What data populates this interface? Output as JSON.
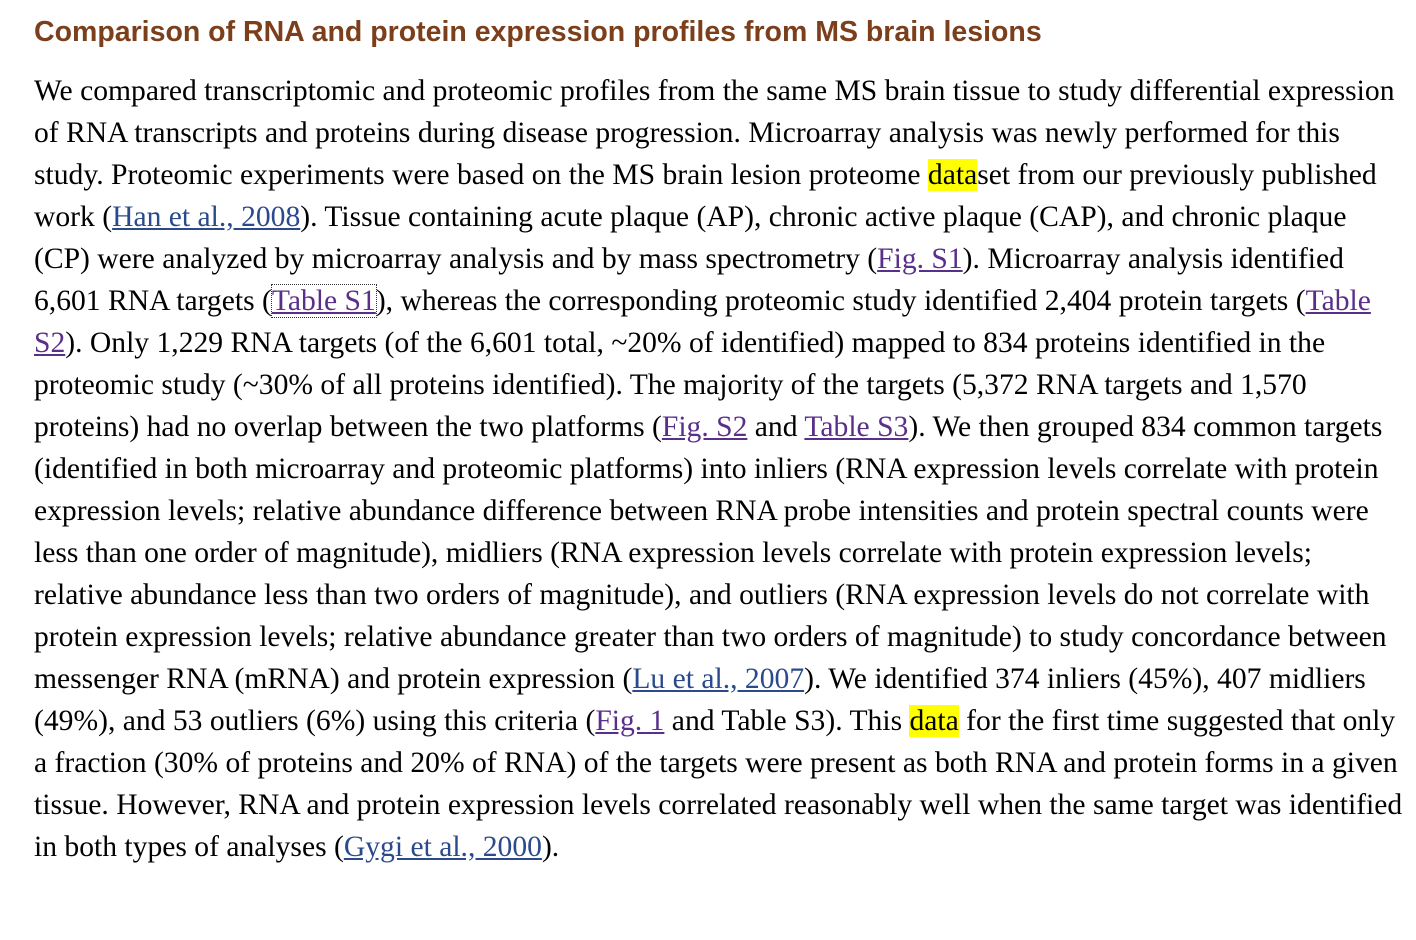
{
  "section": {
    "title": "Comparison of RNA and protein expression profiles from MS brain lesions"
  },
  "paragraph": {
    "t01": "We compared transcriptomic and proteomic profiles from the same MS brain tissue to study differential expression of RNA transcripts and proteins during disease progression. Microarray analysis was newly performed for this study. Proteomic experiments were based on the MS brain lesion proteome ",
    "hl1": "data",
    "t02": "set from our previously published work (",
    "link_han": "Han et al., 2008",
    "t03": "). Tissue containing acute plaque (AP), chronic active plaque (CAP), and chronic plaque (CP) were analyzed by microarray analysis and by mass spectrometry (",
    "link_fig_s1": "Fig. S1",
    "t04": "). Microarray analysis identified 6,601 RNA targets (",
    "link_table_s1": "Table S1",
    "t05": "), whereas the corresponding proteomic study identified 2,404 protein targets (",
    "link_table_s2": "Table S2",
    "t06": "). Only 1,229 RNA targets (of the 6,601 total, ~20% of identified) mapped to 834 proteins identified in the proteomic study (~30% of all proteins identified). The majority of the targets (5,372 RNA targets and 1,570 proteins) had no overlap between the two platforms (",
    "link_fig_s2": "Fig. S2",
    "t07": " and ",
    "link_table_s3": "Table S3",
    "t08": "). We then grouped 834 common targets (identified in both microarray and proteomic platforms) into inliers (RNA expression levels correlate with protein expression levels; relative abundance difference between RNA probe intensities and protein spectral counts were less than one order of magnitude), midliers (RNA expression levels correlate with protein expression levels; relative abundance less than two orders of magnitude), and outliers (RNA expression levels do not correlate with protein expression levels; relative abundance greater than two orders of magnitude) to study concordance between messenger RNA (mRNA) and protein expression (",
    "link_lu": "Lu et al., 2007",
    "t09": "). We identified 374 inliers (45%), 407 midliers (49%), and 53 outliers (6%) using this criteria (",
    "link_fig1": "Fig. 1",
    "t10": " and Table S3). This ",
    "hl2": "data",
    "t11": " for the first time suggested that only a fraction (30% of proteins and 20% of RNA) of the targets were present as both RNA and protein forms in a given tissue. However, RNA and protein expression levels correlated reasonably well when the same target was identified in both types of analyses (",
    "link_gygi": "Gygi et al., 2000",
    "t12": ")."
  },
  "colors": {
    "heading": "#7b3f1c",
    "reference_link": "#2a4a8c",
    "figure_link": "#5a2f8a",
    "highlight": "#ffff00"
  }
}
